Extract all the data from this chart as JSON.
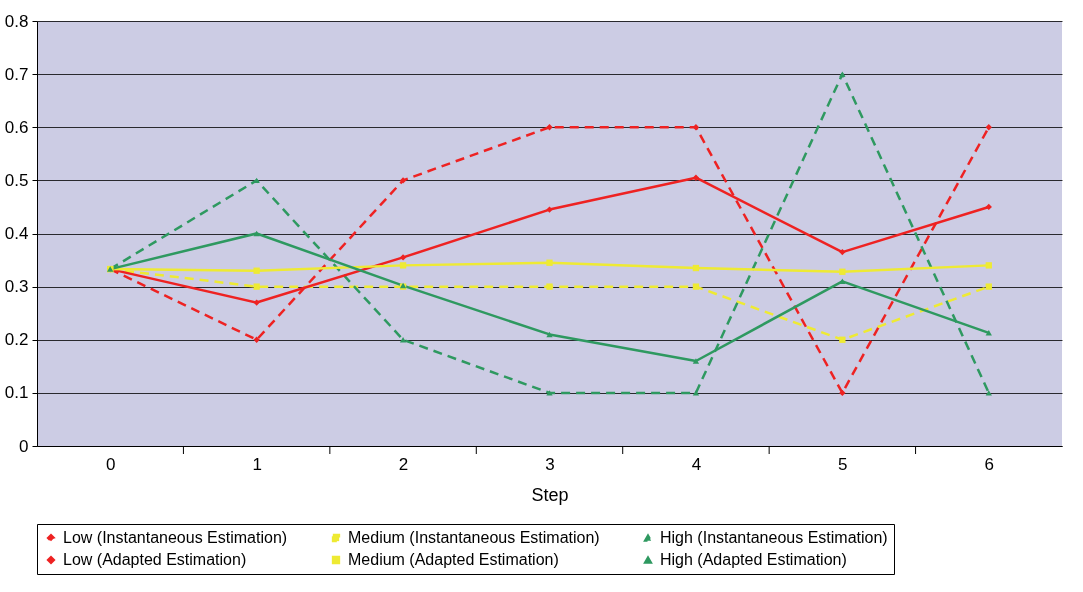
{
  "chart_data": {
    "type": "line",
    "xlabel": "Step",
    "categories": [
      "0",
      "1",
      "2",
      "3",
      "4",
      "5",
      "6"
    ],
    "ylim": [
      0,
      0.8
    ],
    "yticks": [
      0,
      0.1,
      0.2,
      0.3,
      0.4,
      0.5,
      0.6,
      0.7,
      0.8
    ],
    "grid": "y",
    "legend": "bottom",
    "series": [
      {
        "name": "Low (Instantaneous Estimation)",
        "color": "#ee2222",
        "marker": "diamond",
        "line_style": "dashed",
        "values": [
          0.333,
          0.2,
          0.5,
          0.6,
          0.6,
          0.1,
          0.6
        ]
      },
      {
        "name": "Medium (Instantaneous Estimation)",
        "color": "#eeea33",
        "marker": "square",
        "line_style": "dashed",
        "values": [
          0.333,
          0.3,
          0.3,
          0.3,
          0.3,
          0.2,
          0.3
        ]
      },
      {
        "name": "High (Instantaneous Estimation)",
        "color": "#2e9960",
        "marker": "triangle",
        "line_style": "dashed",
        "values": [
          0.333,
          0.5,
          0.2,
          0.1,
          0.1,
          0.7,
          0.1
        ]
      },
      {
        "name": "Low (Adapted Estimation)",
        "color": "#ee2222",
        "marker": "diamond",
        "line_style": "solid",
        "values": [
          0.333,
          0.27,
          0.355,
          0.445,
          0.505,
          0.365,
          0.45
        ]
      },
      {
        "name": "Medium (Adapted Estimation)",
        "color": "#eeea33",
        "marker": "square",
        "line_style": "solid",
        "values": [
          0.333,
          0.33,
          0.34,
          0.345,
          0.335,
          0.328,
          0.34
        ]
      },
      {
        "name": "High (Adapted Estimation)",
        "color": "#2e9960",
        "marker": "triangle",
        "line_style": "solid",
        "values": [
          0.333,
          0.4,
          0.302,
          0.21,
          0.16,
          0.31,
          0.213
        ]
      }
    ]
  }
}
